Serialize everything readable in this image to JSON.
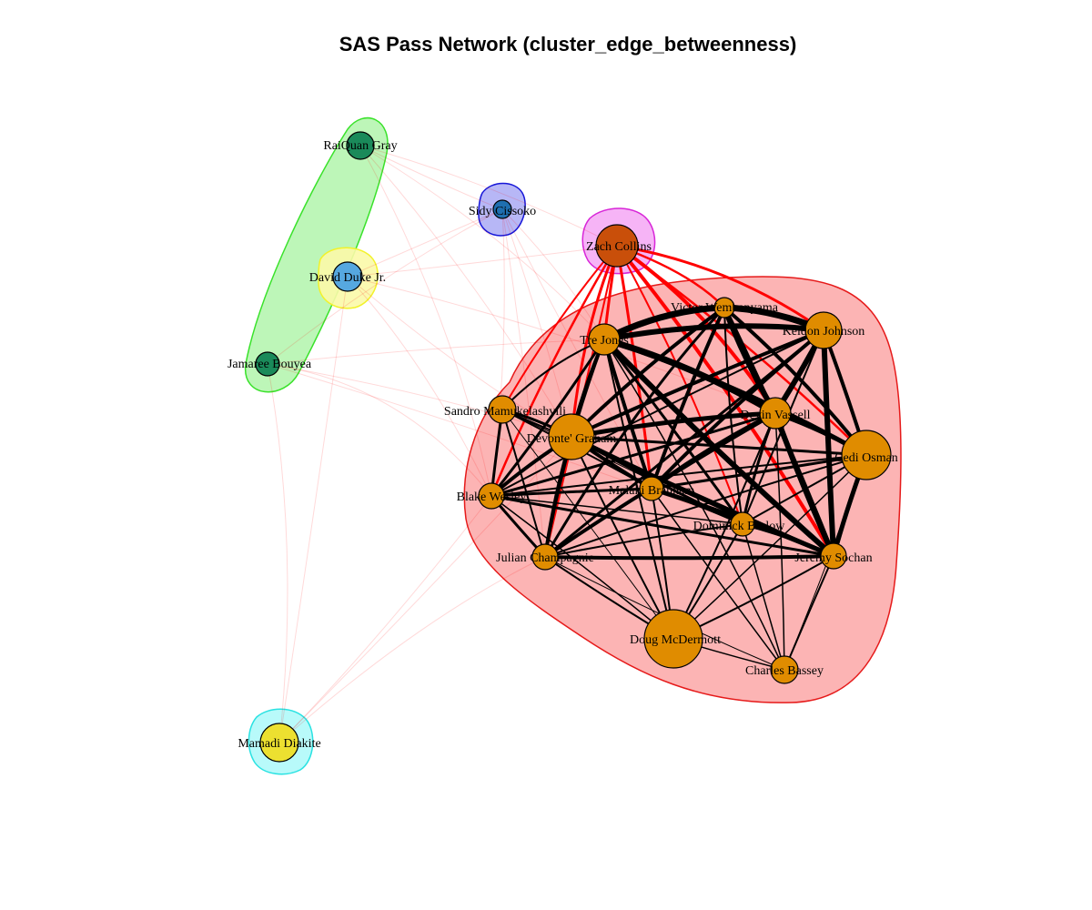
{
  "title": "SAS Pass Network (cluster_edge_betweenness)",
  "nodes": [
    {
      "id": "raiquan",
      "label": "RaiQuan Gray",
      "group": "green",
      "size": "small",
      "color": "#1a8a5a"
    },
    {
      "id": "david",
      "label": "David Duke Jr.",
      "group": "yellow",
      "size": "small",
      "color": "#56a8e0"
    },
    {
      "id": "jamaree",
      "label": "Jamaree Bouyea",
      "group": "green",
      "size": "small",
      "color": "#1a8a5a"
    },
    {
      "id": "sidy",
      "label": "Sidy Cissoko",
      "group": "blue",
      "size": "tiny",
      "color": "#1f6fb0"
    },
    {
      "id": "zach",
      "label": "Zach Collins",
      "group": "magenta",
      "size": "medium",
      "color": "#c94f0a"
    },
    {
      "id": "victor",
      "label": "Victor Wembanyama",
      "group": "red",
      "size": "tiny",
      "color": "#e08c00"
    },
    {
      "id": "keldon",
      "label": "Keldon Johnson",
      "group": "red",
      "size": "medium",
      "color": "#e08c00"
    },
    {
      "id": "tre",
      "label": "Tre Jones",
      "group": "red",
      "size": "small",
      "color": "#e08c00"
    },
    {
      "id": "sandro",
      "label": "Sandro Mamukelashvili",
      "group": "red",
      "size": "small",
      "color": "#e08c00"
    },
    {
      "id": "devin",
      "label": "Devin Vassell",
      "group": "red",
      "size": "small",
      "color": "#e08c00"
    },
    {
      "id": "devonte",
      "label": "Devonte' Graham",
      "group": "red",
      "size": "large",
      "color": "#e08c00"
    },
    {
      "id": "cedi",
      "label": "Cedi Osman",
      "group": "red",
      "size": "large",
      "color": "#e08c00"
    },
    {
      "id": "blake",
      "label": "Blake Wesley",
      "group": "red",
      "size": "small",
      "color": "#e08c00"
    },
    {
      "id": "malaki",
      "label": "Malaki Branham",
      "group": "red",
      "size": "small",
      "color": "#e08c00"
    },
    {
      "id": "dominick",
      "label": "Dominick Barlow",
      "group": "red",
      "size": "small",
      "color": "#e08c00"
    },
    {
      "id": "julian",
      "label": "Julian Champagnie",
      "group": "red",
      "size": "small",
      "color": "#e08c00"
    },
    {
      "id": "jeremy",
      "label": "Jeremy Sochan",
      "group": "red",
      "size": "small",
      "color": "#e08c00"
    },
    {
      "id": "doug",
      "label": "Doug McDermott",
      "group": "red",
      "size": "xlarge",
      "color": "#e08c00"
    },
    {
      "id": "charles",
      "label": "Charles Bassey",
      "group": "red",
      "size": "small",
      "color": "#e08c00"
    },
    {
      "id": "mamadi",
      "label": "Mamadi Diakite",
      "group": "cyan",
      "size": "medium",
      "color": "#ece030"
    }
  ],
  "groups": [
    {
      "id": "green",
      "fill": "#b6f5b0",
      "stroke": "#39e22a"
    },
    {
      "id": "yellow",
      "fill": "#fbfaa8",
      "stroke": "#f2f22a"
    },
    {
      "id": "blue",
      "fill": "#b3b3f5",
      "stroke": "#1616d8"
    },
    {
      "id": "magenta",
      "fill": "#f5b0f5",
      "stroke": "#d826d8"
    },
    {
      "id": "red",
      "fill": "#fcb0b0",
      "stroke": "#e61a1a"
    },
    {
      "id": "cyan",
      "fill": "#b4fafa",
      "stroke": "#2ae2e2"
    }
  ],
  "edge_colors": {
    "intra": "#000000",
    "inter": "#ff0000"
  }
}
